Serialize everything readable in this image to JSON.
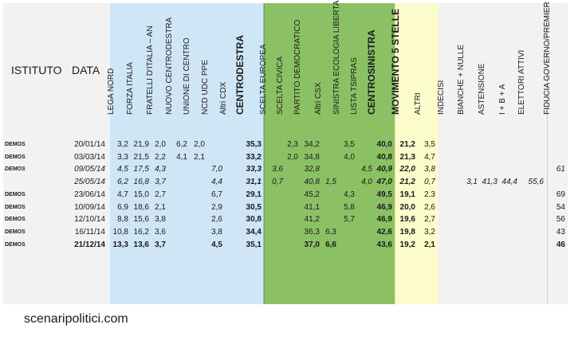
{
  "header": {
    "istituto": "ISTITUTO",
    "data": "DATA"
  },
  "columns": [
    {
      "key": "lega_nord",
      "label": "LEGA NORD"
    },
    {
      "key": "forza_italia",
      "label": "FORZA ITALIA"
    },
    {
      "key": "fratelli_italia",
      "label": "FRATELLI D'ITALIA – AN"
    },
    {
      "key": "nuovo_centrodestra",
      "label": "NUOVO CENTRODESTRA"
    },
    {
      "key": "unione_centro",
      "label": "UNIONE DI CENTRO"
    },
    {
      "key": "ncd_udc_ppe",
      "label": "NCD UDC PPE"
    },
    {
      "key": "altri_cdx",
      "label": "Altri CDX"
    },
    {
      "key": "centrodestra",
      "label": "CENTRODESTRA"
    },
    {
      "key": "scelta_europea",
      "label": "SCELTA EUROPEA"
    },
    {
      "key": "scelta_civica",
      "label": "SCELTA CIVICA"
    },
    {
      "key": "pd",
      "label": "PARTITO DEMOCRATICO"
    },
    {
      "key": "altri_csx",
      "label": "Altri CSX"
    },
    {
      "key": "sel",
      "label": "SINISTRA ECOLOGIA LIBERTA'"
    },
    {
      "key": "tsipras",
      "label": "LISTA TSIPRAS"
    },
    {
      "key": "centrosinistra",
      "label": "CENTROSINISTRA"
    },
    {
      "key": "m5s",
      "label": "MOVIMENTO 5 STELLE"
    },
    {
      "key": "altri",
      "label": "ALTRI"
    },
    {
      "key": "indecisi",
      "label": "INDECISI"
    },
    {
      "key": "bianche_nulle",
      "label": "BIANCHE + NULLE"
    },
    {
      "key": "astensione",
      "label": "ASTENSIONE"
    },
    {
      "key": "ibA",
      "label": "I + B + A"
    },
    {
      "key": "elettori_attivi",
      "label": "ELETTORI ATTIVI"
    },
    {
      "key": "fiducia",
      "label": "FIDUCIA GOVERNO/PREMIER"
    }
  ],
  "rows": [
    {
      "istituto": "DEMOS",
      "data": "20/01/14",
      "style": "normal",
      "values": {
        "lega_nord": "3,2",
        "forza_italia": "21,9",
        "fratelli_italia": "2,0",
        "nuovo_centrodestra": "6,2",
        "unione_centro": "2,0",
        "centrodestra": "35,3",
        "scelta_civica": "2,3",
        "pd": "34,2",
        "sel": "3,5",
        "centrosinistra": "40,0",
        "m5s": "21,2",
        "altri": "3,5"
      }
    },
    {
      "istituto": "DEMOS",
      "data": "03/03/14",
      "style": "normal",
      "values": {
        "lega_nord": "3,3",
        "forza_italia": "21,5",
        "fratelli_italia": "2,2",
        "nuovo_centrodestra": "4,1",
        "unione_centro": "2,1",
        "centrodestra": "33,2",
        "scelta_civica": "2,0",
        "pd": "34,8",
        "sel": "4,0",
        "centrosinistra": "40,8",
        "m5s": "21,3",
        "altri": "4,7"
      }
    },
    {
      "istituto": "DEMOS",
      "data": "09/05/14",
      "style": "italic",
      "values": {
        "lega_nord": "4,5",
        "forza_italia": "17,5",
        "fratelli_italia": "4,3",
        "ncd_udc_ppe": "7,0",
        "centrodestra": "33,3",
        "scelta_europea": "3,6",
        "pd": "32,8",
        "tsipras": "4,5",
        "centrosinistra": "40,9",
        "m5s": "22,0",
        "altri": "3,8",
        "fiducia": "61"
      }
    },
    {
      "istituto": "",
      "data": "25/05/14",
      "style": "italic",
      "values": {
        "lega_nord": "6,2",
        "forza_italia": "16,8",
        "fratelli_italia": "3,7",
        "ncd_udc_ppe": "4,4",
        "centrodestra": "31,1",
        "scelta_europea": "0,7",
        "pd": "40,8",
        "altri_csx": "1,5",
        "tsipras": "4,0",
        "centrosinistra": "47,0",
        "m5s": "21,2",
        "altri": "0,7",
        "bianche_nulle": "3,1",
        "astensione": "41,3",
        "ibA": "44,4",
        "elettori_attivi": "55,6"
      }
    },
    {
      "istituto": "DEMOS",
      "data": "23/06/14",
      "style": "normal",
      "values": {
        "lega_nord": "4,7",
        "forza_italia": "15,0",
        "fratelli_italia": "2,7",
        "ncd_udc_ppe": "6,7",
        "centrodestra": "29,1",
        "pd": "45,2",
        "sel": "4,3",
        "centrosinistra": "49,5",
        "m5s": "19,1",
        "altri": "2,3",
        "fiducia": "69"
      }
    },
    {
      "istituto": "DEMOS",
      "data": "10/09/14",
      "style": "normal",
      "values": {
        "lega_nord": "6,9",
        "forza_italia": "18,6",
        "fratelli_italia": "2,1",
        "ncd_udc_ppe": "2,9",
        "centrodestra": "30,5",
        "pd": "41,1",
        "sel": "5,8",
        "centrosinistra": "46,9",
        "m5s": "20,0",
        "altri": "2,6",
        "fiducia": "54"
      }
    },
    {
      "istituto": "DEMOS",
      "data": "12/10/14",
      "style": "normal",
      "values": {
        "lega_nord": "8,8",
        "forza_italia": "15,6",
        "fratelli_italia": "3,8",
        "ncd_udc_ppe": "2,6",
        "centrodestra": "30,8",
        "pd": "41,2",
        "sel": "5,7",
        "centrosinistra": "46,9",
        "m5s": "19,6",
        "altri": "2,7",
        "fiducia": "56"
      }
    },
    {
      "istituto": "DEMOS",
      "data": "16/11/14",
      "style": "normal",
      "values": {
        "lega_nord": "10,8",
        "forza_italia": "16,2",
        "fratelli_italia": "3,6",
        "ncd_udc_ppe": "3,8",
        "centrodestra": "34,4",
        "pd": "36,3",
        "altri_csx": "6,3",
        "centrosinistra": "42,6",
        "m5s": "19,8",
        "altri": "3,2",
        "fiducia": "43"
      }
    },
    {
      "istituto": "DEMOS",
      "data": "21/12/14",
      "style": "bold",
      "values": {
        "lega_nord": "13,3",
        "forza_italia": "13,6",
        "fratelli_italia": "3,7",
        "ncd_udc_ppe": "4,5",
        "centrodestra": "35,1",
        "pd": "37,0",
        "altri_csx": "6,6",
        "centrosinistra": "43,6",
        "m5s": "19,2",
        "altri": "2,1",
        "fiducia": "46"
      }
    }
  ],
  "footer": "scenaripolitici.com"
}
